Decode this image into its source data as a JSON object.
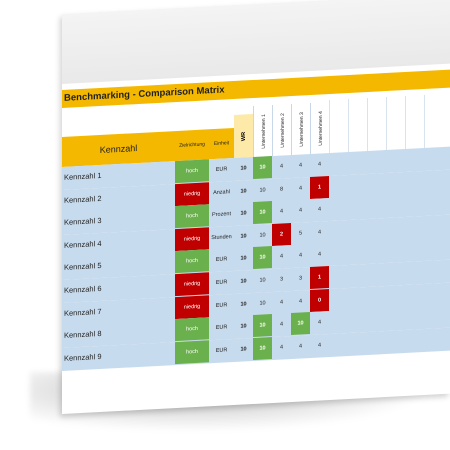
{
  "title": "Benchmarking - Comparison Matrix",
  "headers": {
    "kennzahl": "Kennzahl",
    "zielrichtung": "Zielrichtung",
    "einheit": "Einheit",
    "wr": "WR",
    "companies": [
      "Unternehmen 1",
      "Unternehmen 2",
      "Unternehmen 3",
      "Unternehmen 4"
    ]
  },
  "rows": [
    {
      "label": "Kennzahl 1",
      "ziel": "hoch",
      "einheit": "EUR",
      "wr": "10",
      "values": [
        "10",
        "4",
        "4",
        "4"
      ],
      "flags": [
        "green",
        "",
        "",
        ""
      ]
    },
    {
      "label": "Kennzahl 2",
      "ziel": "niedrig",
      "einheit": "Anzahl",
      "wr": "10",
      "values": [
        "10",
        "8",
        "4",
        "1"
      ],
      "flags": [
        "",
        "",
        "",
        "red"
      ]
    },
    {
      "label": "Kennzahl 3",
      "ziel": "hoch",
      "einheit": "Prozent",
      "wr": "10",
      "values": [
        "10",
        "4",
        "4",
        "4"
      ],
      "flags": [
        "green",
        "",
        "",
        ""
      ]
    },
    {
      "label": "Kennzahl 4",
      "ziel": "niedrig",
      "einheit": "Stunden",
      "wr": "10",
      "values": [
        "10",
        "2",
        "5",
        "4"
      ],
      "flags": [
        "",
        "red",
        "",
        ""
      ]
    },
    {
      "label": "Kennzahl 5",
      "ziel": "hoch",
      "einheit": "EUR",
      "wr": "10",
      "values": [
        "10",
        "4",
        "4",
        "4"
      ],
      "flags": [
        "green",
        "",
        "",
        ""
      ]
    },
    {
      "label": "Kennzahl 6",
      "ziel": "niedrig",
      "einheit": "EUR",
      "wr": "10",
      "values": [
        "10",
        "3",
        "3",
        "1"
      ],
      "flags": [
        "",
        "",
        "",
        "red"
      ]
    },
    {
      "label": "Kennzahl 7",
      "ziel": "niedrig",
      "einheit": "EUR",
      "wr": "10",
      "values": [
        "10",
        "4",
        "4",
        "0"
      ],
      "flags": [
        "",
        "",
        "",
        "red"
      ]
    },
    {
      "label": "Kennzahl 8",
      "ziel": "hoch",
      "einheit": "EUR",
      "wr": "10",
      "values": [
        "10",
        "4",
        "10",
        "4"
      ],
      "flags": [
        "green",
        "",
        "green",
        ""
      ]
    },
    {
      "label": "Kennzahl 9",
      "ziel": "hoch",
      "einheit": "EUR",
      "wr": "10",
      "values": [
        "10",
        "4",
        "4",
        "4"
      ],
      "flags": [
        "green",
        "",
        "",
        ""
      ]
    }
  ],
  "colors": {
    "accent": "#f4b800",
    "green": "#6ab04c",
    "red": "#c00000",
    "row": "#c7dbee"
  }
}
